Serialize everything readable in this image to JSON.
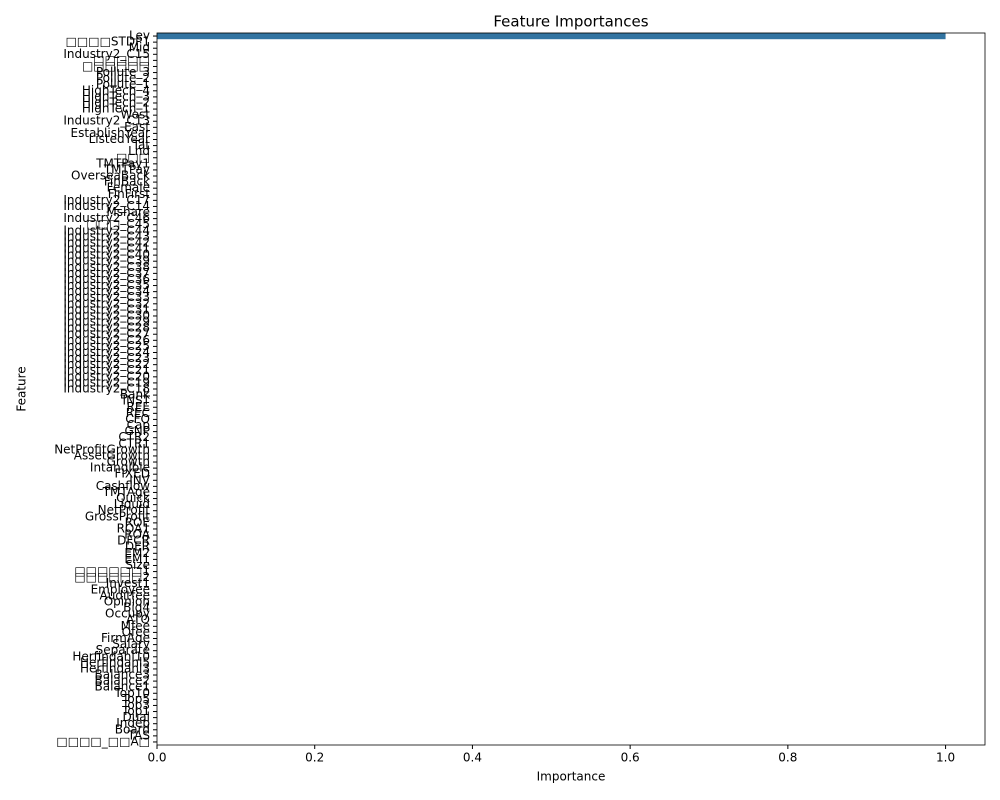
{
  "chart_data": {
    "type": "barh",
    "title": "Feature Importances",
    "x_label": "Importance",
    "y_label": "Feature",
    "categories": [
      "Lev",
      "□□□□STDP1",
      "Mid",
      "Industry2_C15",
      "□□□□□",
      "□□□□□□",
      "Pollute_3",
      "Pollute_2",
      "Pollute_1",
      "HighTech_4",
      "HighTech_3",
      "HighTech_2",
      "HighTech_1",
      "West",
      "Industry2_C13",
      "East",
      "EstablishYear",
      "ListedYear",
      "Tat",
      "Lnd",
      "□□□",
      "TMTPay1",
      "TMTPay",
      "OverseaBack",
      "FinBack",
      "Female",
      "FinFirst",
      "Industry2_C17",
      "Industry2_C14",
      "Mshare",
      "Industry2_C46",
      "□□□_C45",
      "Industry2_C44",
      "Industry2_C43",
      "Industry2_C42",
      "Industry2_C41",
      "Industry2_C40",
      "Industry2_C39",
      "Industry2_C38",
      "Industry2_C37",
      "Industry2_C36",
      "Industry2_C35",
      "Industry2_C34",
      "Industry2_C33",
      "Industry2_C32",
      "Industry2_C31",
      "Industry2_C30",
      "Industry2_C29",
      "Industry2_C28",
      "Industry2_C27",
      "Industry2_C26",
      "Industry2_C25",
      "Industry2_C24",
      "Industry2_C23",
      "Industry2_C22",
      "Industry2_C21",
      "Industry2_C20",
      "Industry2_C19",
      "Industry2_C18",
      "Bank",
      "INST",
      "REE",
      "REC",
      "CFO",
      "Cap",
      "GNP",
      "CTR2",
      "CTR1",
      "NetProfitGrowth",
      "AssetGrowth",
      "Growth",
      "Intangible",
      "FIXED",
      "INV",
      "Cashflow",
      "TMTAge",
      "Quick",
      "Liquid",
      "NetProfit",
      "GrossProfit",
      "ROE",
      "ROA1",
      "ROA",
      "DFCR",
      "DER",
      "EM2",
      "EM1",
      "Size",
      "□□□□□□1",
      "□□□□□□2",
      "Invest1",
      "Employee",
      "Auditfee",
      "Opinion",
      "Big4",
      "Occupy",
      "ATO",
      "Mfee",
      "Ofee",
      "FirmAge",
      "Salary",
      "Separate",
      "Herfindahl10",
      "Herfindahl5",
      "Herfindahl3",
      "Balance3",
      "Balance2",
      "Balance1",
      "Top10",
      "Top5",
      "Top3",
      "Top1",
      "Dual",
      "Indep",
      "Board",
      "TAS",
      "□□□□_□□A□"
    ],
    "values": [
      1.0,
      0,
      0,
      0,
      0,
      0,
      0,
      0,
      0,
      0,
      0,
      0,
      0,
      0,
      0,
      0,
      0,
      0,
      0,
      0,
      0,
      0,
      0,
      0,
      0,
      0,
      0,
      0,
      0,
      0,
      0,
      0,
      0,
      0,
      0,
      0,
      0,
      0,
      0,
      0,
      0,
      0,
      0,
      0,
      0,
      0,
      0,
      0,
      0,
      0,
      0,
      0,
      0,
      0,
      0,
      0,
      0,
      0,
      0,
      0,
      0,
      0,
      0,
      0,
      0,
      0,
      0,
      0,
      0,
      0,
      0,
      0,
      0,
      0,
      0,
      0,
      0,
      0,
      0,
      0,
      0,
      0,
      0,
      0,
      0,
      0,
      0,
      0,
      0,
      0,
      0,
      0,
      0,
      0,
      0,
      0,
      0,
      0,
      0,
      0,
      0,
      0,
      0,
      0,
      0,
      0,
      0,
      0,
      0,
      0,
      0,
      0,
      0,
      0,
      0,
      0,
      0
    ],
    "color": "#3274a1",
    "xlim": [
      0,
      1.05
    ],
    "xticks": [
      {
        "value": 0,
        "label": "0.0"
      },
      0.2,
      0.4,
      0.6,
      0.8,
      {
        "value": 1,
        "label": "1.0"
      }
    ]
  }
}
